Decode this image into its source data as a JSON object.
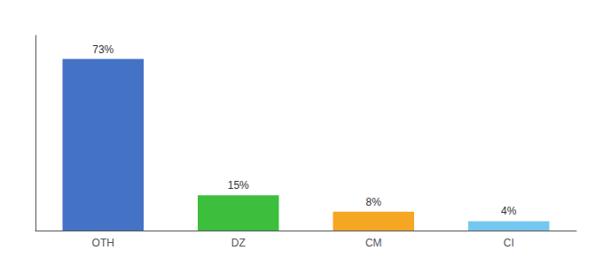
{
  "chart_data": {
    "type": "bar",
    "categories": [
      "OTH",
      "DZ",
      "CM",
      "CI"
    ],
    "values": [
      73,
      15,
      8,
      4
    ],
    "value_labels": [
      "73%",
      "15%",
      "8%",
      "4%"
    ],
    "colors": [
      "#4472c4",
      "#3dbf3d",
      "#f5a623",
      "#74c8f0"
    ],
    "ylim": [
      0,
      83
    ],
    "yticks": [],
    "data_labels": true,
    "tick_labels": "x",
    "grid": false
  }
}
